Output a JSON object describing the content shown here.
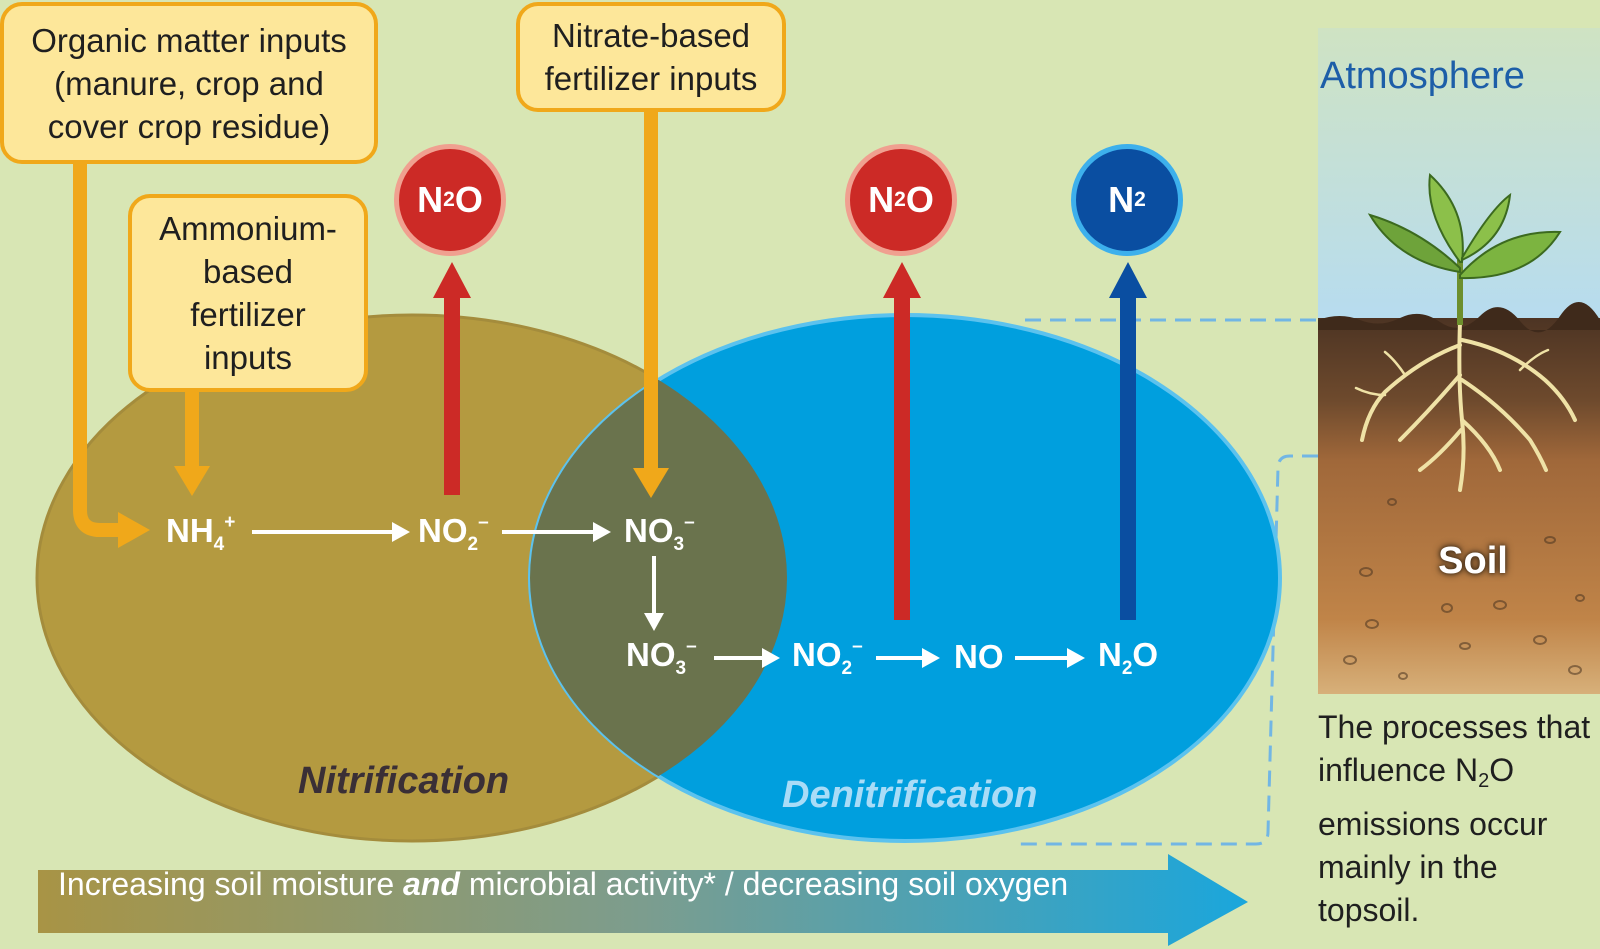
{
  "inputs": {
    "organic": "Organic matter inputs (manure, crop and cover crop residue)",
    "ammonium": "Ammonium-based fertilizer inputs",
    "nitrate": "Nitrate-based fertilizer inputs"
  },
  "chemicals": {
    "nh4": {
      "base": "NH",
      "sub": "4",
      "sup": "+"
    },
    "no2": {
      "base": "NO",
      "sub": "2",
      "sup": "–"
    },
    "no3": {
      "base": "NO",
      "sub": "3",
      "sup": "–"
    },
    "no": "NO",
    "n2o": {
      "pre": "N",
      "sub": "2",
      "post": "O"
    }
  },
  "gases": {
    "n2o": {
      "pre": "N",
      "sub": "2",
      "post": "O"
    },
    "n2": {
      "pre": "N",
      "sub": "2"
    }
  },
  "processes": {
    "nitrification": "Nitrification",
    "denitrification": "Denitrification"
  },
  "gradient": {
    "part1": "Increasing soil moisture ",
    "emphasis": "and",
    "part2": " microbial activity* / decreasing soil oxygen"
  },
  "panel": {
    "atmosphere": "Atmosphere",
    "soil": "Soil",
    "caption_pre": "The processes that influence N",
    "caption_sub": "2",
    "caption_post": "O emissions occur mainly in the topsoil."
  },
  "colors": {
    "background": "#d8e6b4",
    "nitrification": "#b49a40",
    "denitrification": "#009fde",
    "input_arrow": "#f0a81a",
    "n2o_red": "#cc2a26",
    "n2_blue": "#0a4ea1"
  }
}
